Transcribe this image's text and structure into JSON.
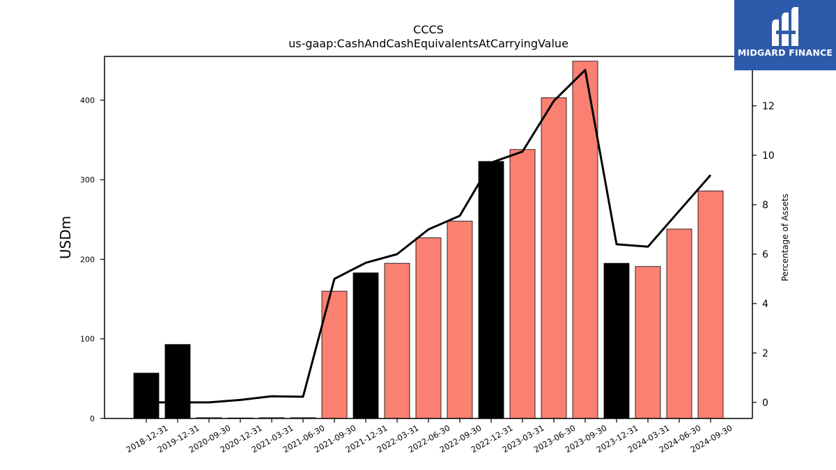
{
  "chart_data": {
    "type": "bar",
    "title": "CCCS",
    "subtitle": "us-gaap:CashAndCashEquivalentsAtCarryingValue",
    "ylabel": "USDm",
    "y2label": "Percentage of Assets",
    "categories": [
      "2018-12-31",
      "2019-12-31",
      "2020-09-30",
      "2020-12-31",
      "2021-03-31",
      "2021-06-30",
      "2021-09-30",
      "2021-12-31",
      "2022-03-31",
      "2022-06-30",
      "2022-09-30",
      "2022-12-31",
      "2023-03-31",
      "2023-06-30",
      "2023-09-30",
      "2023-12-31",
      "2024-03-31",
      "2024-06-30",
      "2024-09-30"
    ],
    "series": [
      {
        "values": [
          57,
          93,
          1,
          0.5,
          1,
          1,
          160,
          183,
          195,
          227,
          248,
          323,
          338,
          403,
          449,
          195,
          191,
          238,
          286
        ],
        "bar_colors": [
          "#000000",
          "#000000",
          "#fa8072",
          "#fa8072",
          "#fa8072",
          "#fa8072",
          "#fa8072",
          "#000000",
          "#fa8072",
          "#fa8072",
          "#fa8072",
          "#000000",
          "#fa8072",
          "#fa8072",
          "#fa8072",
          "#000000",
          "#fa8072",
          "#fa8072",
          "#fa8072"
        ]
      },
      {
        "type": "line",
        "axis": "right",
        "color": "#000000",
        "values": [
          0.0,
          0.0,
          0.0,
          0.1,
          0.25,
          0.23,
          5.0,
          5.65,
          6.0,
          7.0,
          7.55,
          9.7,
          10.15,
          12.2,
          13.45,
          6.4,
          6.3,
          7.75,
          9.2
        ]
      }
    ],
    "ylim": [
      0,
      455
    ],
    "yticks": [
      0,
      100,
      200,
      300,
      400
    ],
    "y2lim": [
      -0.65,
      14.0
    ],
    "y2ticks": [
      0,
      2,
      4,
      6,
      8,
      10,
      12
    ],
    "grid": false
  },
  "logo": {
    "text": "MIDGARD FINANCE",
    "background": "#2d5aaa"
  }
}
